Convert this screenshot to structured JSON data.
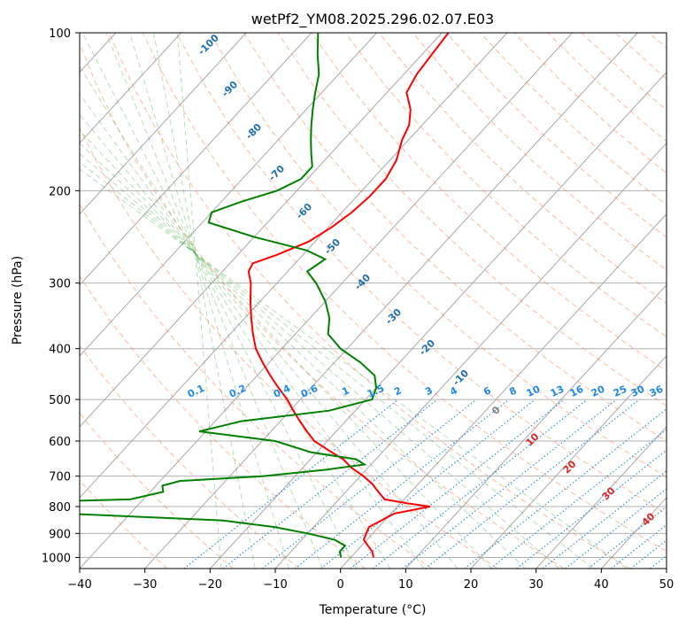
{
  "chart_data": {
    "type": "line",
    "title": "wetPf2_YM08.2025.296.02.07.E03",
    "xlabel": "Temperature (°C)",
    "ylabel": "Pressure (hPa)",
    "xlim": [
      -40,
      50
    ],
    "ylim": [
      1050,
      100
    ],
    "y_scale": "log",
    "x_ticks": [
      -40,
      -30,
      -20,
      -10,
      0,
      10,
      20,
      30,
      40,
      50
    ],
    "y_ticks": [
      100,
      200,
      300,
      400,
      500,
      600,
      700,
      800,
      900,
      1000
    ],
    "grid": true,
    "colors": {
      "temperature": "#ff0000",
      "dewpoint": "#008000",
      "dry_adiabat": "#ff7f50",
      "moist_adiabat": "#2ca02c",
      "mixing_ratio": "#1e88e5",
      "isotherm": "#808080",
      "skewed_isotherm_label": "#1f6fb0",
      "warm_label": "#d62728"
    },
    "series": [
      {
        "key": "temperature",
        "points": [
          [
            3.5,
            1000
          ],
          [
            2.5,
            975
          ],
          [
            1.0,
            950
          ],
          [
            -0.5,
            925
          ],
          [
            -1.0,
            900
          ],
          [
            -1.5,
            875
          ],
          [
            -0.5,
            850
          ],
          [
            0.5,
            825
          ],
          [
            5,
            800
          ],
          [
            1.5,
            790
          ],
          [
            -3,
            775
          ],
          [
            -5,
            750
          ],
          [
            -7,
            725
          ],
          [
            -9.5,
            700
          ],
          [
            -12.5,
            675
          ],
          [
            -15,
            650
          ],
          [
            -18.5,
            625
          ],
          [
            -22,
            600
          ],
          [
            -24.5,
            575
          ],
          [
            -27,
            550
          ],
          [
            -29.5,
            525
          ],
          [
            -32,
            500
          ],
          [
            -35,
            475
          ],
          [
            -38,
            450
          ],
          [
            -41,
            425
          ],
          [
            -44,
            400
          ],
          [
            -46.5,
            375
          ],
          [
            -49,
            350
          ],
          [
            -51.5,
            325
          ],
          [
            -54,
            300
          ],
          [
            -56,
            285
          ],
          [
            -56.5,
            275
          ],
          [
            -54,
            265
          ],
          [
            -51,
            250
          ],
          [
            -49.5,
            235
          ],
          [
            -48.5,
            220
          ],
          [
            -48,
            205
          ],
          [
            -48,
            190
          ],
          [
            -49,
            175
          ],
          [
            -51,
            160
          ],
          [
            -52,
            150
          ],
          [
            -54,
            140
          ],
          [
            -57,
            130
          ],
          [
            -58,
            120
          ],
          [
            -58.5,
            110
          ],
          [
            -59,
            100
          ]
        ]
      },
      {
        "key": "dewpoint",
        "points": [
          [
            -1.5,
            1000
          ],
          [
            -2.5,
            975
          ],
          [
            -2.5,
            950
          ],
          [
            -5,
            925
          ],
          [
            -10,
            900
          ],
          [
            -16,
            875
          ],
          [
            -25,
            850
          ],
          [
            -50,
            825
          ],
          [
            -70,
            810
          ],
          [
            -85,
            800
          ],
          [
            -90,
            795
          ],
          [
            -85,
            790
          ],
          [
            -50,
            780
          ],
          [
            -42,
            775
          ],
          [
            -38,
            750
          ],
          [
            -39,
            730
          ],
          [
            -37,
            715
          ],
          [
            -25,
            700
          ],
          [
            -16,
            680
          ],
          [
            -11,
            665
          ],
          [
            -13,
            650
          ],
          [
            -21,
            630
          ],
          [
            -28,
            600
          ],
          [
            -41,
            575
          ],
          [
            -36,
            550
          ],
          [
            -24,
            525
          ],
          [
            -19,
            500
          ],
          [
            -20,
            475
          ],
          [
            -22,
            450
          ],
          [
            -26,
            425
          ],
          [
            -31,
            400
          ],
          [
            -35,
            375
          ],
          [
            -37,
            350
          ],
          [
            -40,
            325
          ],
          [
            -44,
            300
          ],
          [
            -47,
            285
          ],
          [
            -46,
            270
          ],
          [
            -50,
            260
          ],
          [
            -60,
            245
          ],
          [
            -69,
            230
          ],
          [
            -70,
            220
          ],
          [
            -67,
            210
          ],
          [
            -63,
            200
          ],
          [
            -61,
            190
          ],
          [
            -61,
            180
          ],
          [
            -63,
            170
          ],
          [
            -65,
            160
          ],
          [
            -67,
            150
          ],
          [
            -69,
            140
          ],
          [
            -71,
            130
          ],
          [
            -73,
            120
          ],
          [
            -76,
            110
          ],
          [
            -79,
            100
          ]
        ]
      }
    ],
    "skewed_isotherm_labels": [
      "-100",
      "-90",
      "-80",
      "-70",
      "-60",
      "-50",
      "-40",
      "-30",
      "-20",
      "-10"
    ],
    "isotherm_zero_label": "0",
    "warm_isotherm_labels": [
      "10",
      "20",
      "30",
      "40"
    ],
    "mixing_ratio_labels": [
      "0.1",
      "0.2",
      "0.4",
      "0.6",
      "1",
      "1.5",
      "2",
      "3",
      "4",
      "6",
      "8",
      "10",
      "13",
      "16",
      "20",
      "25",
      "30",
      "36"
    ]
  }
}
